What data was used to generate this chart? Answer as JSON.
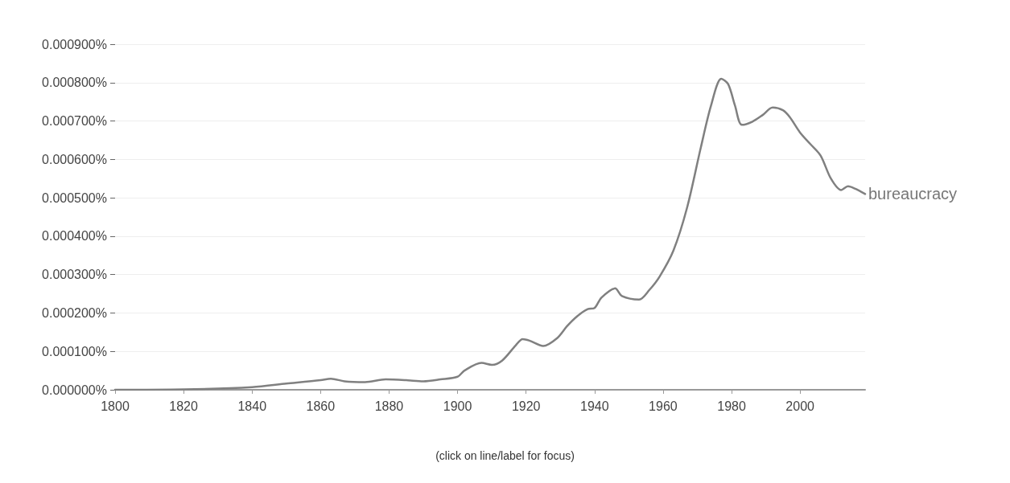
{
  "chart_data": {
    "type": "line",
    "annotations": [
      "(click on line/label for focus)"
    ],
    "x": [
      1800,
      1820,
      1840,
      1850,
      1860,
      1863,
      1867,
      1873,
      1879,
      1885,
      1890,
      1895,
      1900,
      1902,
      1907,
      1910,
      1913,
      1917,
      1919,
      1921,
      1925,
      1929,
      1932,
      1935,
      1938,
      1940,
      1942,
      1946,
      1948,
      1953,
      1956,
      1959,
      1963,
      1967,
      1971,
      1974,
      1977,
      1979,
      1981,
      1983,
      1986,
      1989,
      1992,
      1995,
      1997,
      2000,
      2003,
      2006,
      2009,
      2012,
      2014,
      2016,
      2019
    ],
    "series": [
      {
        "name": "bureaucracy",
        "color": "#808080",
        "values": [
          0,
          1e-06,
          7e-06,
          1.6e-05,
          2.5e-05,
          2.9e-05,
          2.2e-05,
          2e-05,
          2.7e-05,
          2.5e-05,
          2.2e-05,
          2.7e-05,
          3.4e-05,
          5e-05,
          7e-05,
          6.5e-05,
          7.6e-05,
          0.000116,
          0.000132,
          0.000128,
          0.000114,
          0.000134,
          0.000166,
          0.000192,
          0.00021,
          0.000213,
          0.00024,
          0.000264,
          0.000244,
          0.000235,
          0.00026,
          0.000295,
          0.000362,
          0.000474,
          0.00063,
          0.00074,
          0.00081,
          0.000796,
          0.00074,
          0.00069,
          0.000698,
          0.000715,
          0.000735,
          0.000728,
          0.00071,
          0.00067,
          0.00064,
          0.00061,
          0.00055,
          0.00052,
          0.00053,
          0.000524,
          0.00051
        ]
      }
    ],
    "xlim": [
      1800,
      2019
    ],
    "xticks": [
      1800,
      1820,
      1840,
      1860,
      1880,
      1900,
      1920,
      1940,
      1960,
      1980,
      2000
    ],
    "ylim": [
      0,
      0.0009
    ],
    "yticks": [
      {
        "value": 0,
        "label": "0.000000%"
      },
      {
        "value": 0.0001,
        "label": "0.000100%"
      },
      {
        "value": 0.0002,
        "label": "0.000200%"
      },
      {
        "value": 0.0003,
        "label": "0.000300%"
      },
      {
        "value": 0.0004,
        "label": "0.000400%"
      },
      {
        "value": 0.0005,
        "label": "0.000500%"
      },
      {
        "value": 0.0006,
        "label": "0.000600%"
      },
      {
        "value": 0.0007,
        "label": "0.000700%"
      },
      {
        "value": 0.0008,
        "label": "0.000800%"
      },
      {
        "value": 0.0009,
        "label": "0.000900%"
      }
    ],
    "grid": "y",
    "legend": false,
    "marker": "none",
    "line_style": "solid"
  }
}
